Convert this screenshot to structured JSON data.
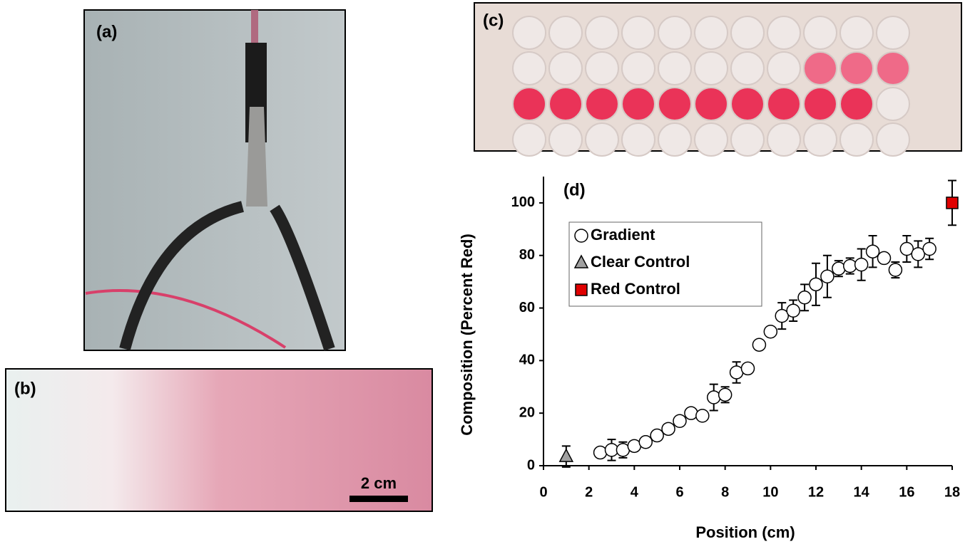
{
  "panels": {
    "a": "(a)",
    "b": "(b)",
    "c": "(c)",
    "scale_bar": "2 cm"
  },
  "chart_data": {
    "type": "scatter",
    "panel_label": "(d)",
    "x_label": "Position (cm)",
    "y_label": "Composition (Percent Red)",
    "xlim": [
      0,
      18
    ],
    "ylim": [
      0,
      110
    ],
    "xticks": [
      0,
      2,
      4,
      6,
      8,
      10,
      12,
      14,
      16,
      18
    ],
    "yticks": [
      0,
      20,
      40,
      60,
      80,
      100
    ],
    "legend": "upper left",
    "series": [
      {
        "name": "Gradient",
        "color": "#ffffff",
        "marker": "circle",
        "x": [
          2.5,
          3,
          3.5,
          4,
          4.5,
          5,
          5.5,
          6,
          6.5,
          7,
          7.5,
          8,
          8.5,
          9,
          9.5,
          10,
          10.5,
          11,
          11.5,
          12,
          12.5,
          13,
          13.5,
          14,
          14.5,
          15,
          15.5,
          16,
          16.5,
          17
        ],
        "values": [
          5,
          6,
          6,
          7.5,
          9,
          11.5,
          14,
          17,
          20,
          19,
          26,
          27,
          35.5,
          37,
          46,
          51,
          57,
          59,
          64,
          69,
          72,
          75,
          76,
          76.5,
          81.5,
          79,
          74.5,
          82.5,
          80.5,
          82.5
        ],
        "errors": [
          1,
          4,
          3,
          1,
          1,
          1,
          1,
          1,
          1,
          1,
          5,
          3,
          4,
          1,
          1,
          1,
          5,
          4,
          5,
          8,
          8,
          3,
          3,
          6,
          6,
          1,
          3,
          5,
          5,
          4
        ]
      },
      {
        "name": "Clear Control",
        "color": "#a0a0a0",
        "marker": "triangle",
        "x": [
          1
        ],
        "values": [
          3.5
        ],
        "errors": [
          4
        ]
      },
      {
        "name": "Red Control",
        "color": "#e00000",
        "marker": "square",
        "x": [
          18
        ],
        "values": [
          100
        ],
        "errors": [
          8.5
        ]
      }
    ]
  }
}
